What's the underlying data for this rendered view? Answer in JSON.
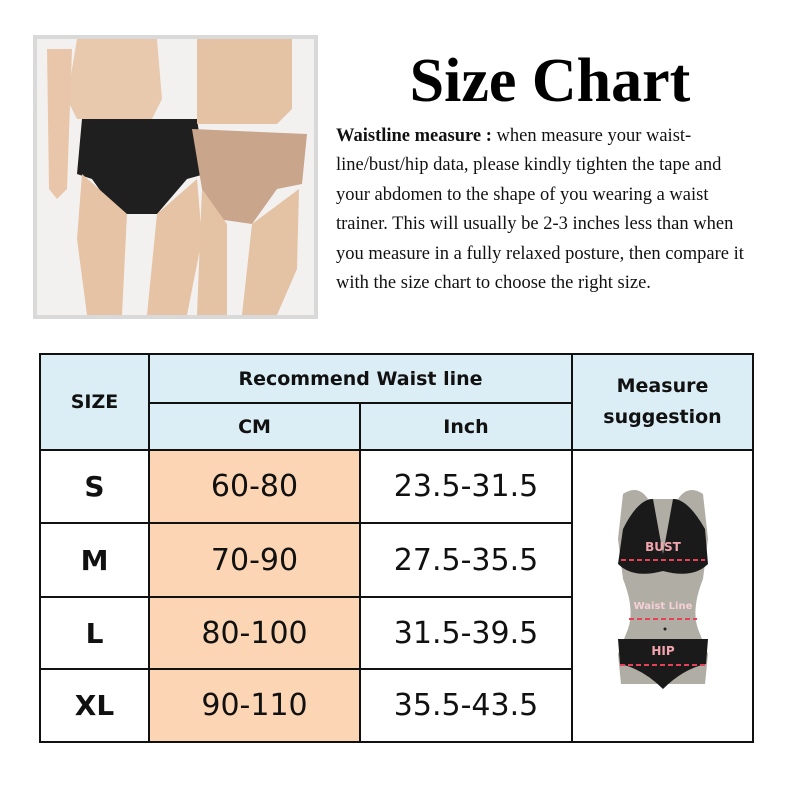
{
  "title": "Size Chart",
  "description": {
    "label": "Waistline measure :",
    "text": " when measure your waist-line/bust/hip data, please kindly tighten the tape and your abdomen to the shape of you wearing a waist trainer. This will usually be 2-3 inches less than when you measure in a fully relaxed posture, then compare it with the size chart to choose the right size."
  },
  "table": {
    "headers": {
      "size": "SIZE",
      "recommend": "Recommend Waist line",
      "cm": "CM",
      "inch": "Inch",
      "measure": "Measure suggestion"
    },
    "rows": [
      {
        "size": "S",
        "cm": "60-80",
        "inch": "23.5-31.5"
      },
      {
        "size": "M",
        "cm": "70-90",
        "inch": "27.5-35.5"
      },
      {
        "size": "L",
        "cm": "80-100",
        "inch": "31.5-39.5"
      },
      {
        "size": "XL",
        "cm": "90-110",
        "inch": "35.5-43.5"
      }
    ],
    "figure_labels": {
      "bust": "BUST",
      "waist": "Waist Line",
      "hip": "HIP"
    }
  },
  "colors": {
    "header_bg": "#dbeef5",
    "cm_bg": "#fcd5b5",
    "garment_black": "#1a1a1a",
    "garment_nude": "#c9a58c",
    "mannequin": "#b0ada4",
    "measure_line": "#e8425a"
  }
}
